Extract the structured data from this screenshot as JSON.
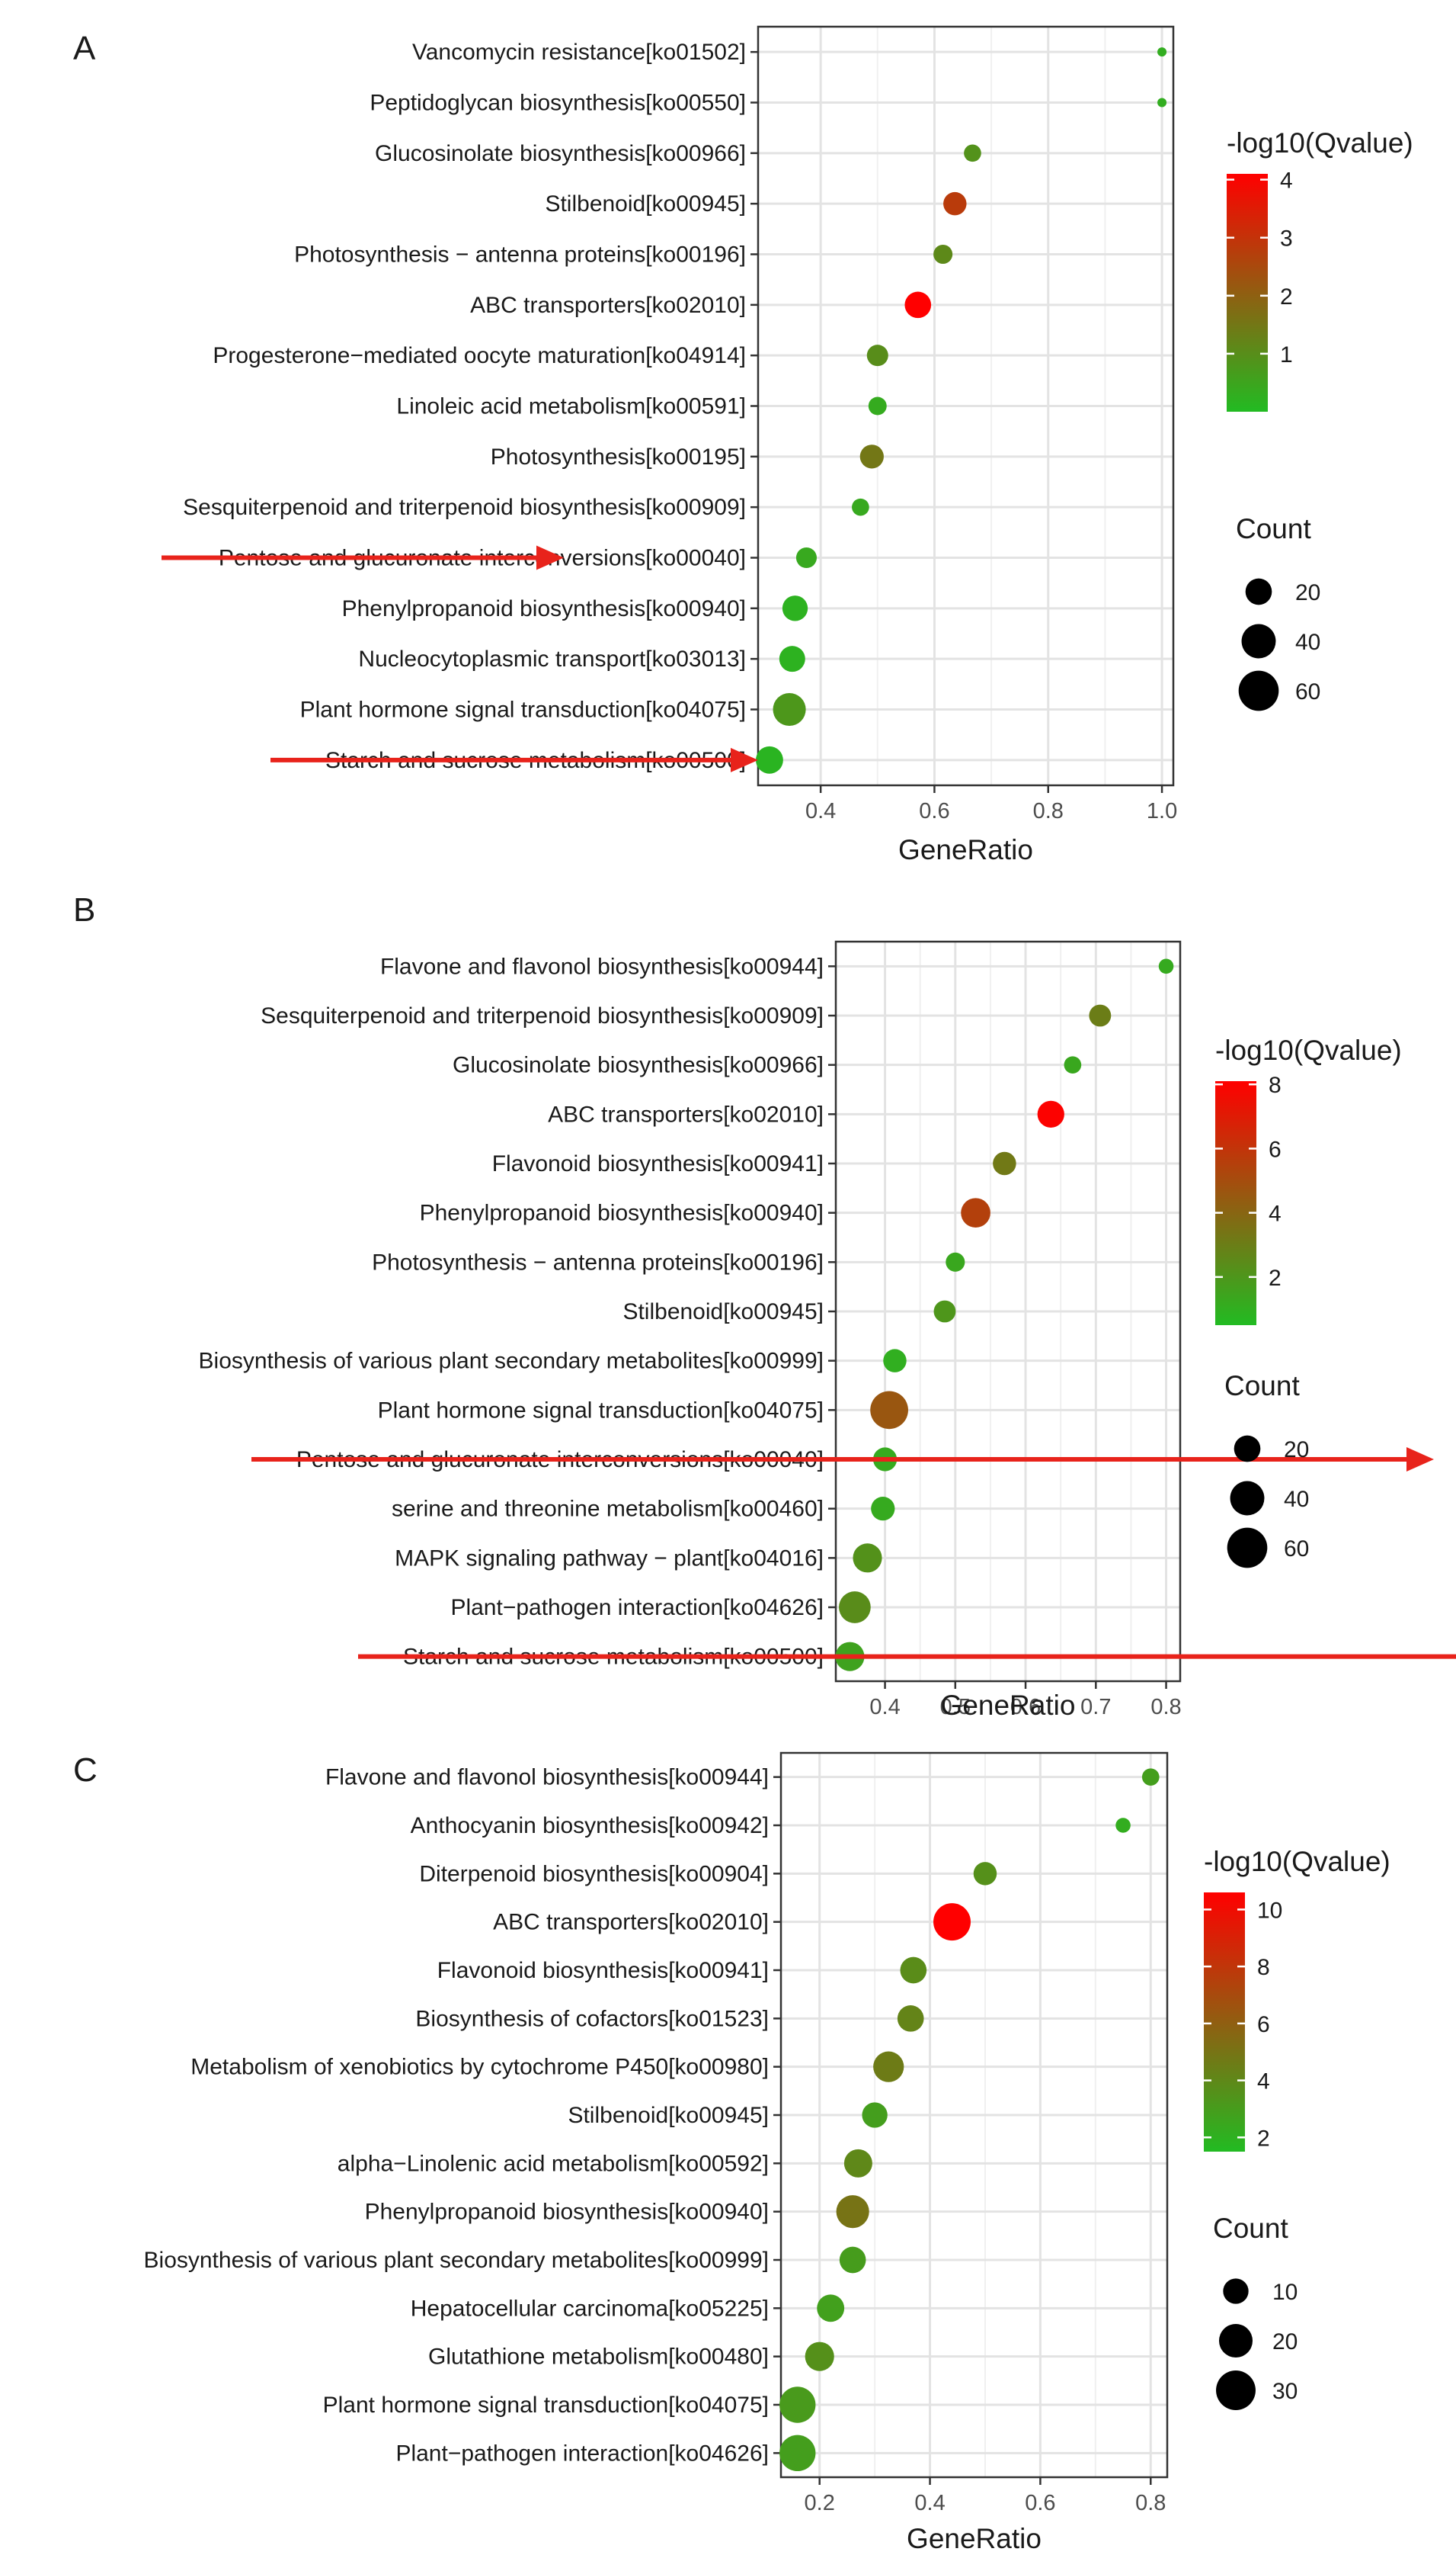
{
  "chart_data": [
    {
      "type": "scatter",
      "panel": "A",
      "xlabel": "GeneRatio",
      "xlim": [
        0.29,
        1.02
      ],
      "xticks": [
        0.4,
        0.6,
        0.8,
        1.0
      ],
      "xtick_labels": [
        "0.4",
        "0.6",
        "0.8",
        "1.0"
      ],
      "color_title": "-log10(Qvalue)",
      "color_range": [
        0,
        4.1
      ],
      "color_ticks": [
        1,
        2,
        3,
        4
      ],
      "size_title": "Count",
      "size_range": [
        2,
        70
      ],
      "size_legend": [
        20,
        40,
        60
      ],
      "categories": [
        "Vancomycin resistance[ko01502]",
        "Peptidoglycan biosynthesis[ko00550]",
        "Glucosinolate biosynthesis[ko00966]",
        "Stilbenoid[ko00945]",
        "Photosynthesis − antenna proteins[ko00196]",
        "ABC transporters[ko02010]",
        "Progesterone−mediated oocyte maturation[ko04914]",
        "Linoleic acid metabolism[ko00591]",
        "Photosynthesis[ko00195]",
        "Sesquiterpenoid and triterpenoid biosynthesis[ko00909]",
        "Pentose and glucuronate interconversions[ko00040]",
        "Phenylpropanoid biosynthesis[ko00940]",
        "Nucleocytoplasmic transport[ko03013]",
        "Plant hormone signal transduction[ko04075]",
        "Starch and sucrose metabolism[ko00500]"
      ],
      "gene_ratio": [
        1.0,
        1.0,
        0.667,
        0.636,
        0.615,
        0.571,
        0.5,
        0.5,
        0.49,
        0.47,
        0.375,
        0.355,
        0.35,
        0.345,
        0.31
      ],
      "count": [
        2,
        2,
        6,
        14,
        8,
        20,
        11,
        7,
        15,
        6,
        10,
        18,
        19,
        36,
        22
      ],
      "neg_log10_q": [
        0.3,
        0.3,
        0.9,
        2.8,
        1.1,
        4.1,
        1.0,
        0.35,
        1.5,
        0.4,
        0.4,
        0.2,
        0.2,
        0.8,
        0.15
      ],
      "highlight": [
        "Pentose and glucuronate interconversions[ko00040]",
        "Starch and sucrose metabolism[ko00500]"
      ]
    },
    {
      "type": "scatter",
      "panel": "B",
      "xlabel": "GeneRatio",
      "xlim": [
        0.33,
        0.82
      ],
      "xticks": [
        0.4,
        0.5,
        0.6,
        0.7,
        0.8
      ],
      "xtick_labels": [
        "0.4",
        "0.5",
        "0.6",
        "0.7",
        "0.8"
      ],
      "color_title": "-log10(Qvalue)",
      "color_range": [
        0.5,
        8.1
      ],
      "color_ticks": [
        2,
        4,
        6,
        8
      ],
      "size_title": "Count",
      "size_range": [
        2,
        70
      ],
      "size_legend": [
        20,
        40,
        60
      ],
      "categories": [
        "Flavone and flavonol biosynthesis[ko00944]",
        "Sesquiterpenoid and triterpenoid biosynthesis[ko00909]",
        "Glucosinolate biosynthesis[ko00966]",
        "ABC transporters[ko02010]",
        "Flavonoid biosynthesis[ko00941]",
        "Phenylpropanoid biosynthesis[ko00940]",
        "Photosynthesis − antenna proteins[ko00196]",
        "Stilbenoid[ko00945]",
        "Biosynthesis of various plant secondary metabolites[ko00999]",
        "Plant hormone signal transduction[ko04075]",
        "Pentose and glucuronate interconversions[ko00040]",
        "serine and threonine metabolism[ko00460]",
        "MAPK signaling pathway − plant[ko04016]",
        "Plant−pathogen interaction[ko04626]",
        "Starch and sucrose metabolism[ko00500]"
      ],
      "gene_ratio": [
        0.8,
        0.706,
        0.667,
        0.636,
        0.57,
        0.529,
        0.5,
        0.485,
        0.414,
        0.406,
        0.4,
        0.397,
        0.375,
        0.357,
        0.35
      ],
      "count": [
        4,
        12,
        6,
        21,
        14,
        27,
        8,
        12,
        14,
        52,
        15,
        15,
        26,
        33,
        26
      ],
      "neg_log10_q": [
        1.2,
        3.0,
        1.3,
        8.0,
        3.2,
        5.5,
        1.3,
        2.0,
        1.0,
        4.6,
        1.2,
        1.2,
        2.2,
        2.4,
        1.5
      ],
      "highlight": [
        "Pentose and glucuronate interconversions[ko00040]",
        "Starch and sucrose metabolism[ko00500]"
      ]
    },
    {
      "type": "scatter",
      "panel": "C",
      "xlabel": "GeneRatio",
      "xlim": [
        0.13,
        0.83
      ],
      "xticks": [
        0.2,
        0.4,
        0.6,
        0.8
      ],
      "xtick_labels": [
        "0.2",
        "0.4",
        "0.6",
        "0.8"
      ],
      "color_title": "-log10(Qvalue)",
      "color_range": [
        1.5,
        10.6
      ],
      "color_ticks": [
        2,
        4,
        6,
        8,
        10
      ],
      "size_title": "Count",
      "size_range": [
        2,
        36
      ],
      "size_legend": [
        10,
        20,
        30
      ],
      "categories": [
        "Flavone and flavonol biosynthesis[ko00944]",
        "Anthocyanin biosynthesis[ko00942]",
        "Diterpenoid biosynthesis[ko00904]",
        "ABC transporters[ko02010]",
        "Flavonoid biosynthesis[ko00941]",
        "Biosynthesis of cofactors[ko01523]",
        "Metabolism of xenobiotics by cytochrome P450[ko00980]",
        "Stilbenoid[ko00945]",
        "alpha−Linolenic acid metabolism[ko00592]",
        "Phenylpropanoid biosynthesis[ko00940]",
        "Biosynthesis of various plant secondary metabolites[ko00999]",
        "Hepatocellular carcinoma[ko05225]",
        "Glutathione metabolism[ko00480]",
        "Plant hormone signal transduction[ko04075]",
        "Plant−pathogen interaction[ko04626]"
      ],
      "gene_ratio": [
        0.8,
        0.75,
        0.5,
        0.44,
        0.37,
        0.365,
        0.325,
        0.3,
        0.27,
        0.26,
        0.26,
        0.22,
        0.2,
        0.16,
        0.16
      ],
      "count": [
        4,
        3,
        8,
        26,
        11,
        11,
        16,
        10,
        13,
        19,
        11,
        12,
        14,
        24,
        24
      ],
      "neg_log10_q": [
        2.9,
        2.2,
        3.6,
        10.6,
        3.8,
        4.2,
        4.6,
        2.9,
        4.0,
        5.0,
        3.0,
        2.8,
        3.6,
        3.1,
        2.9
      ]
    }
  ]
}
